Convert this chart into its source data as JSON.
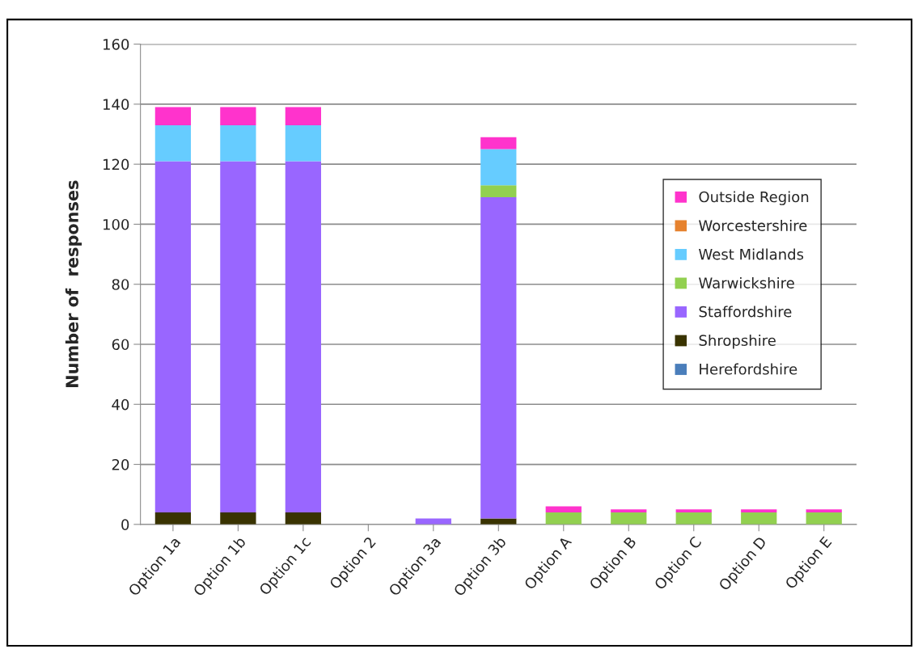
{
  "chart_data": {
    "type": "bar",
    "stacked": true,
    "ylabel": "Number of  responses",
    "categories": [
      "Option 1a",
      "Option 1b",
      "Option 1c",
      "Option 2",
      "Option 3a",
      "Option 3b",
      "Option A",
      "Option B",
      "Option C",
      "Option D",
      "Option E"
    ],
    "series": [
      {
        "name": "Herefordshire",
        "color": "#4a7ebb",
        "values": [
          0,
          0,
          0,
          0,
          0,
          0,
          0,
          0,
          0,
          0,
          0
        ]
      },
      {
        "name": "Shropshire",
        "color": "#393300",
        "values": [
          4,
          4,
          4,
          0,
          0,
          2,
          0,
          0,
          0,
          0,
          0
        ]
      },
      {
        "name": "Staffordshire",
        "color": "#9966ff",
        "values": [
          117,
          117,
          117,
          0,
          2,
          107,
          0,
          0,
          0,
          0,
          0
        ]
      },
      {
        "name": "Warwickshire",
        "color": "#92d050",
        "values": [
          0,
          0,
          0,
          0,
          0,
          4,
          4,
          4,
          4,
          4,
          4
        ]
      },
      {
        "name": "West Midlands",
        "color": "#66ccff",
        "values": [
          12,
          12,
          12,
          0,
          0,
          12,
          0,
          0,
          0,
          0,
          0
        ]
      },
      {
        "name": "Worcestershire",
        "color": "#e6822e",
        "values": [
          0,
          0,
          0,
          0,
          0,
          0,
          0,
          0,
          0,
          0,
          0
        ]
      },
      {
        "name": "Outside Region",
        "color": "#ff33cc",
        "values": [
          6,
          6,
          6,
          0,
          0,
          4,
          2,
          1,
          1,
          1,
          1
        ]
      }
    ],
    "ylim": [
      0,
      160
    ],
    "yticks": [
      0,
      20,
      40,
      60,
      80,
      100,
      120,
      140,
      160
    ],
    "grid": "y",
    "legend": "right"
  }
}
